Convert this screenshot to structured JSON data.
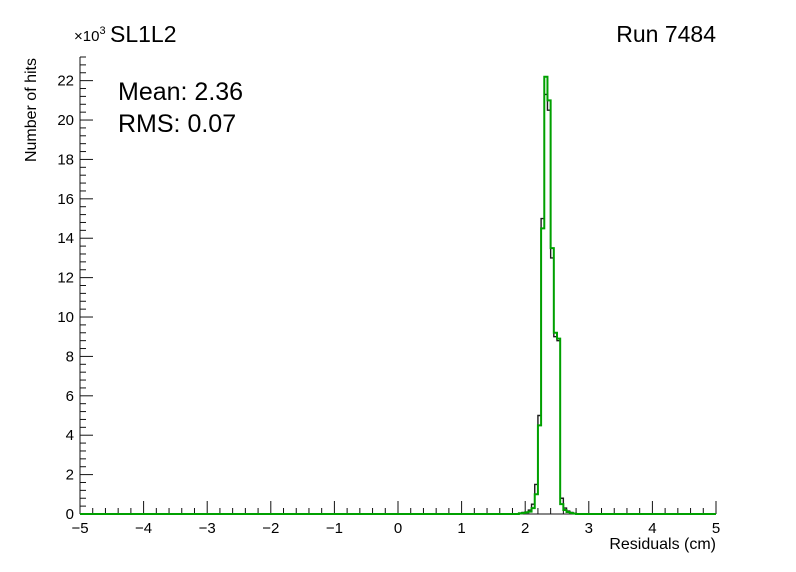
{
  "header": {
    "run_label": "Run 7484"
  },
  "chart_data": {
    "type": "histogram",
    "title": "SL1L2",
    "xlabel": "Residuals (cm)",
    "ylabel": "Number of hits",
    "y_exponent_base": "×10",
    "y_exponent_sup": "3",
    "y_unit_multiplier": 1000,
    "xlim": [
      -5,
      5
    ],
    "ylim": [
      0,
      23.2
    ],
    "x_major_ticks": [
      -5,
      -4,
      -3,
      -2,
      -1,
      0,
      1,
      2,
      3,
      4,
      5
    ],
    "x_minor_step": 0.2,
    "y_major_ticks": [
      0,
      2,
      4,
      6,
      8,
      10,
      12,
      14,
      16,
      18,
      20,
      22
    ],
    "y_minor_step": 0.4,
    "grid": false,
    "legend": false,
    "bin_start": 1.9,
    "bin_width": 0.05,
    "series": [
      {
        "name": "black-histogram",
        "color": "#1c1c1c",
        "line_width": 1.4,
        "values_k": [
          0.05,
          0.08,
          0.1,
          0.2,
          0.5,
          1.5,
          5.0,
          15.0,
          21.3,
          20.5,
          13.0,
          9.0,
          8.8,
          0.8,
          0.3,
          0.15,
          0.08,
          0.04
        ]
      },
      {
        "name": "green-histogram",
        "color": "#00a000",
        "line_width": 2,
        "values_k": [
          0.03,
          0.05,
          0.08,
          0.12,
          0.3,
          1.0,
          4.5,
          14.5,
          22.2,
          21.0,
          13.5,
          9.2,
          8.9,
          0.5,
          0.2,
          0.1,
          0.05,
          0.02
        ]
      }
    ],
    "annotations": [
      "Mean: 2.36",
      "RMS:  0.07"
    ],
    "stats": {
      "mean": 2.36,
      "rms": 0.07
    }
  },
  "colors": {
    "axis": "#111111",
    "background": "#ffffff"
  }
}
